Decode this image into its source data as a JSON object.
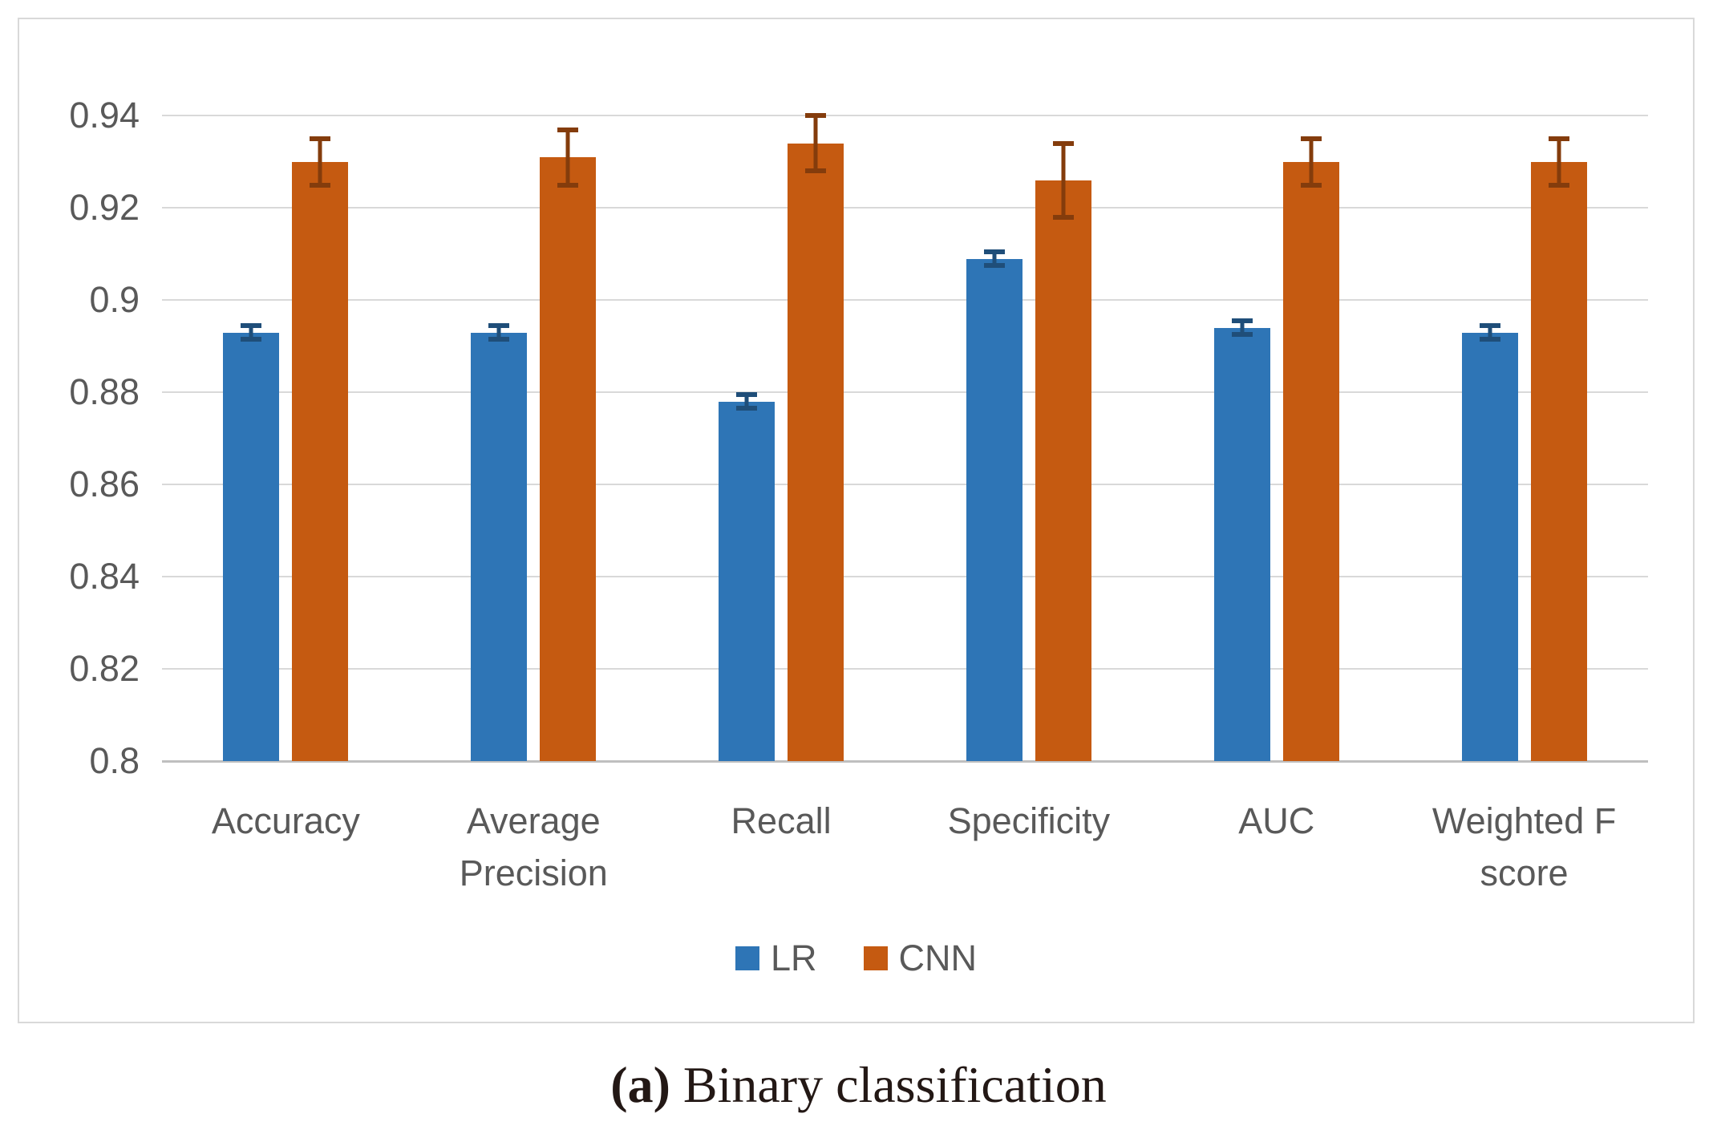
{
  "chart_data": {
    "type": "bar",
    "title": "",
    "categories": [
      "Accuracy",
      "Average Precision",
      "Recall",
      "Specificity",
      "AUC",
      "Weighted F score"
    ],
    "series": [
      {
        "name": "LR",
        "color": "#2E75B6",
        "error_color": "#1F4E79",
        "values": [
          0.893,
          0.893,
          0.878,
          0.909,
          0.894,
          0.893
        ],
        "errors": [
          0.0015,
          0.0015,
          0.0015,
          0.0015,
          0.0015,
          0.0015
        ]
      },
      {
        "name": "CNN",
        "color": "#C55A11",
        "error_color": "#843C0C",
        "values": [
          0.93,
          0.931,
          0.934,
          0.926,
          0.93,
          0.93
        ],
        "errors": [
          0.005,
          0.006,
          0.006,
          0.008,
          0.005,
          0.005
        ]
      }
    ],
    "ylim": [
      0.8,
      0.95
    ],
    "ytick_values": [
      0.8,
      0.82,
      0.84,
      0.86,
      0.88,
      0.9,
      0.92,
      0.94
    ],
    "ytick_labels": [
      "0.8",
      "0.82",
      "0.84",
      "0.86",
      "0.88",
      "0.9",
      "0.92",
      "0.94"
    ],
    "grid": true,
    "legend_position": "bottom"
  },
  "caption": {
    "open_paren": "(",
    "letter": "a",
    "close_paren": ")",
    "text": " Binary classification"
  },
  "style_colors": {
    "gridline": "#D9D9D9",
    "axis_line": "#BFBFBF",
    "text": "#595959",
    "border": "#D9D9D9"
  }
}
